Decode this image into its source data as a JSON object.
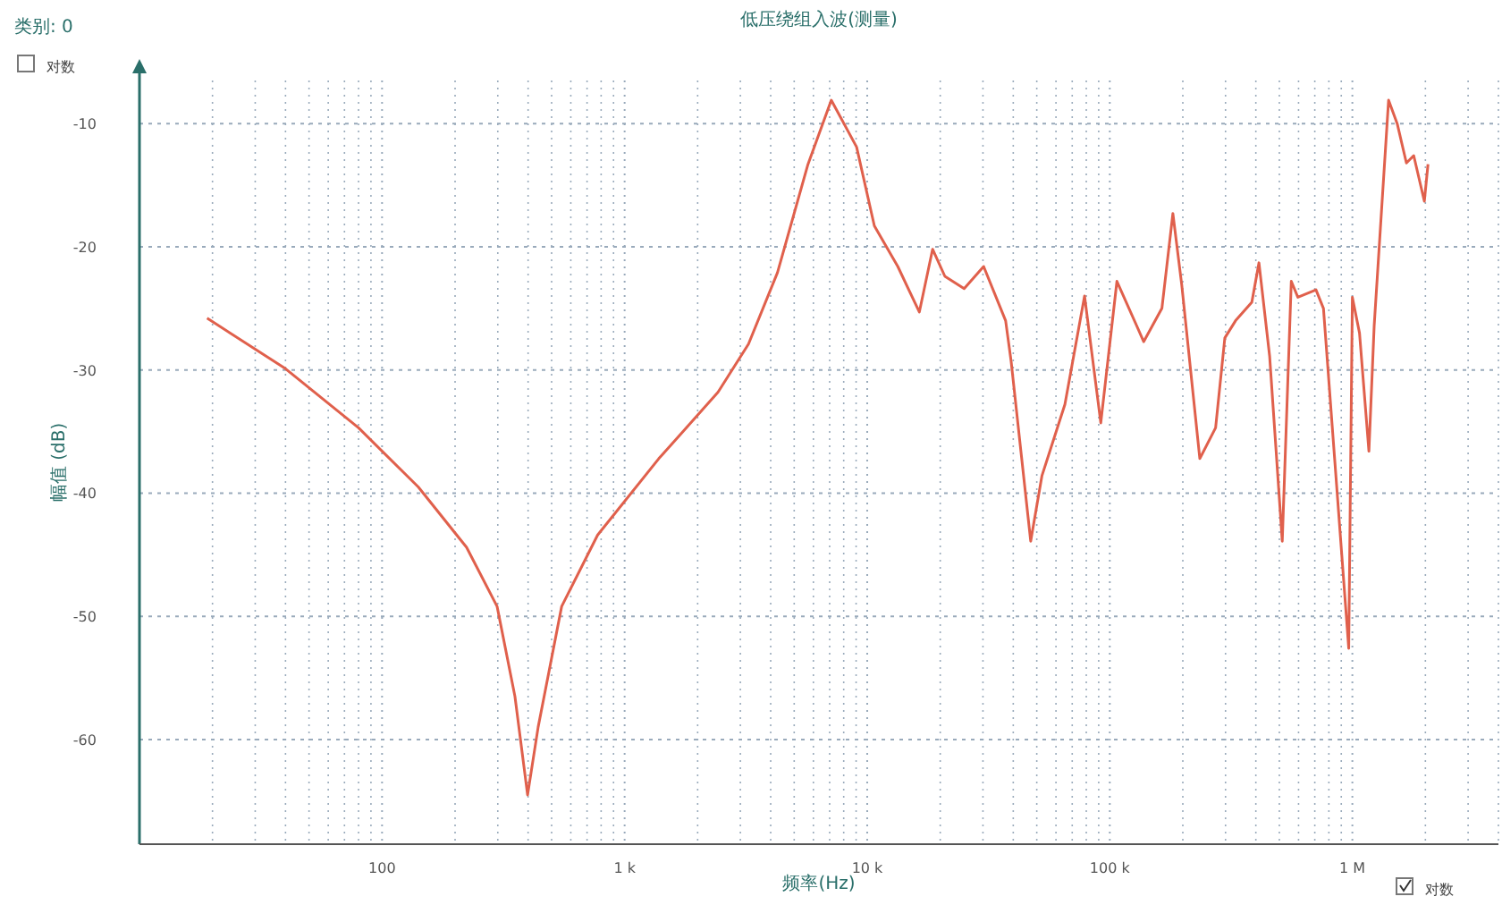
{
  "chart_data": {
    "type": "line",
    "title": "低压绕组入波(测量)",
    "xlabel": "频率(Hz)",
    "ylabel": "幅值 (dB)",
    "log": "x",
    "grid": true,
    "annotations": [
      "类别: 0",
      "对数",
      "对数"
    ],
    "xlim": [
      10,
      4000000
    ],
    "xticks": [
      100,
      {
        "value": 1000,
        "label": "1 k"
      },
      {
        "value": 10000,
        "label": "10 k"
      },
      {
        "value": 100000,
        "label": "100 k"
      },
      {
        "value": 1000000,
        "label": "1 M"
      }
    ],
    "ylim": [
      -68.5,
      -6.5
    ],
    "yticks": [
      -10,
      -20,
      -30,
      -40,
      -50,
      -60
    ],
    "series": [
      {
        "color": "#e0604c",
        "x": [
          19,
          40,
          80,
          141,
          223,
          298,
          353,
          398,
          440,
          550,
          774,
          1383,
          2427,
          3240,
          4266,
          5700,
          7110,
          9040,
          10700,
          13370,
          16400,
          18600,
          20900,
          25100,
          30200,
          37200,
          39200,
          47200,
          52500,
          65300,
          78700,
          91800,
          107000,
          138000,
          164000,
          182000,
          198000,
          235000,
          273000,
          298000,
          330000,
          385000,
          412000,
          456000,
          514000,
          560000,
          596000,
          708000,
          760000,
          966000,
          1000000,
          1070000,
          1170000,
          1230000,
          1410000,
          1530000,
          1670000,
          1790000,
          1980000,
          2050000
        ],
        "values": [
          -25.8,
          -29.9,
          -34.7,
          -39.5,
          -44.4,
          -49.2,
          -56.5,
          -64.5,
          -59,
          -49.2,
          -43.4,
          -37.2,
          -31.8,
          -27.9,
          -22.1,
          -13.3,
          -8.1,
          -11.9,
          -18.3,
          -21.6,
          -25.3,
          -20.2,
          -22.4,
          -23.4,
          -21.6,
          -26,
          -29.3,
          -43.9,
          -38.6,
          -32.8,
          -24,
          -34.3,
          -22.8,
          -27.7,
          -25,
          -17.3,
          -23.1,
          -37.2,
          -34.7,
          -27.4,
          -26,
          -24.5,
          -21.3,
          -28.9,
          -43.9,
          -22.8,
          -24.1,
          -23.5,
          -25,
          -52.6,
          -24.1,
          -27,
          -36.6,
          -26.4,
          -8.1,
          -10,
          -13.2,
          -12.6,
          -16.3,
          -13.3
        ]
      }
    ]
  }
}
